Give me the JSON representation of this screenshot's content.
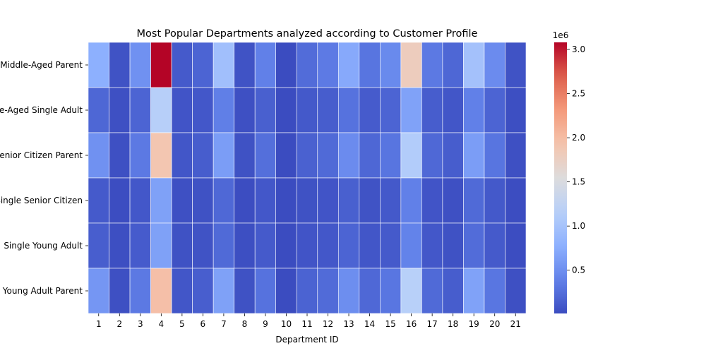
{
  "chart_data": {
    "type": "heatmap",
    "title": "Most Popular Departments analyzed according to Customer Profile",
    "xlabel": "Department ID",
    "ylabel": "",
    "x_categories": [
      "1",
      "2",
      "3",
      "4",
      "5",
      "6",
      "7",
      "8",
      "9",
      "10",
      "11",
      "12",
      "13",
      "14",
      "15",
      "16",
      "17",
      "18",
      "19",
      "20",
      "21"
    ],
    "y_categories": [
      "Middle-Aged Parent",
      "Middle-Aged Single Adult",
      "Senior Citizen Parent",
      "Single Senior Citizen",
      "Single Young Adult",
      "Young Adult Parent"
    ],
    "values": [
      [
        780000,
        60000,
        520000,
        3080000,
        110000,
        180000,
        960000,
        60000,
        380000,
        10000,
        240000,
        340000,
        720000,
        300000,
        460000,
        1800000,
        330000,
        200000,
        980000,
        470000,
        60000
      ],
      [
        200000,
        40000,
        180000,
        1150000,
        70000,
        90000,
        370000,
        40000,
        150000,
        10000,
        100000,
        130000,
        280000,
        120000,
        180000,
        660000,
        130000,
        80000,
        380000,
        180000,
        30000
      ],
      [
        520000,
        40000,
        330000,
        1900000,
        80000,
        130000,
        620000,
        50000,
        260000,
        10000,
        160000,
        220000,
        470000,
        200000,
        300000,
        1110000,
        210000,
        130000,
        620000,
        300000,
        40000
      ],
      [
        110000,
        20000,
        90000,
        650000,
        40000,
        50000,
        210000,
        20000,
        90000,
        10000,
        50000,
        70000,
        150000,
        60000,
        100000,
        380000,
        70000,
        40000,
        220000,
        100000,
        20000
      ],
      [
        140000,
        30000,
        120000,
        650000,
        50000,
        60000,
        220000,
        30000,
        110000,
        10000,
        70000,
        90000,
        180000,
        80000,
        110000,
        400000,
        90000,
        50000,
        240000,
        110000,
        20000
      ],
      [
        560000,
        40000,
        330000,
        1970000,
        80000,
        140000,
        650000,
        50000,
        280000,
        10000,
        170000,
        230000,
        490000,
        210000,
        310000,
        1160000,
        220000,
        130000,
        660000,
        310000,
        40000
      ]
    ],
    "colorbar": {
      "scale_label": "1e6",
      "vmin": 10000,
      "vmax": 3080000,
      "ticks": [
        0.5,
        1.0,
        1.5,
        2.0,
        2.5,
        3.0
      ],
      "tick_labels": [
        "0.5",
        "1.0",
        "1.5",
        "2.0",
        "2.5",
        "3.0"
      ],
      "multiplier": 1000000
    },
    "colormap": "coolwarm",
    "grid_line_color": "#ffffff"
  }
}
